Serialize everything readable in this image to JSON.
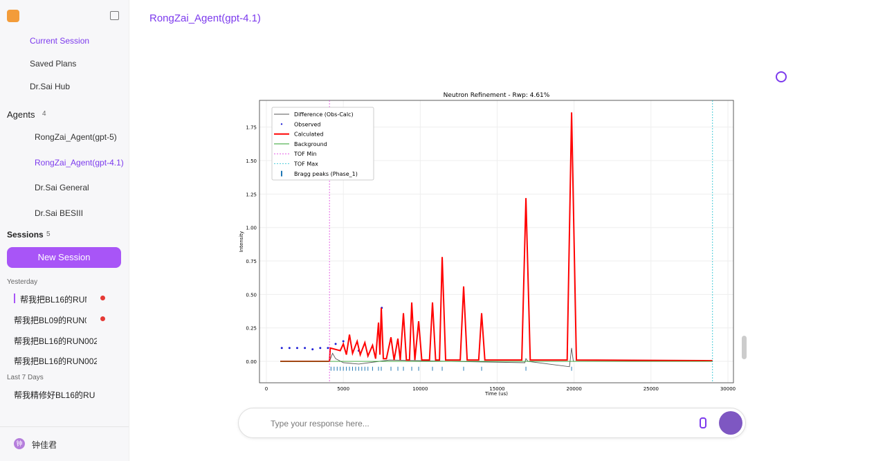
{
  "sidebar": {
    "nav": [
      "Current Session",
      "Saved Plans",
      "Dr.Sai Hub"
    ],
    "agents_title": "Agents",
    "agents_count": 4,
    "agents": [
      "RongZai_Agent(gpt-5)",
      "RongZai_Agent(gpt-4.1)",
      "Dr.Sai General",
      "Dr.Sai BESIII"
    ],
    "sessions_title": "Sessions",
    "sessions_count": 5,
    "new_session": "New Session",
    "groups": [
      {
        "label": "Yesterday",
        "items": [
          "帮我把BL16的RUN(",
          "帮我把BL09的RUN0(",
          "帮我把BL16的RUN002",
          "帮我把BL16的RUN002"
        ]
      },
      {
        "label": "Last 7 Days",
        "items": [
          "帮我精修好BL16的RUN"
        ]
      }
    ],
    "user_initial": "钟",
    "user": "钟佳君"
  },
  "header": {
    "title": "RongZai_Agent(gpt-4.1)"
  },
  "input": {
    "placeholder": "Type your response here..."
  },
  "chart_data": {
    "type": "line",
    "title": "Neutron Refinement - Rwp: 4.61%",
    "xlabel": "Time (us)",
    "ylabel": "Intensity",
    "xlim": [
      -450,
      30360
    ],
    "ylim": [
      -0.16,
      1.95
    ],
    "xticks": [
      0,
      5000,
      10000,
      15000,
      20000,
      25000,
      30000
    ],
    "yticks": [
      {
        "value": 0,
        "label": "0.00"
      },
      {
        "value": 0.25,
        "label": "0.25"
      },
      {
        "value": 0.5,
        "label": "0.50"
      },
      {
        "value": 0.75,
        "label": "0.75"
      },
      {
        "value": 1,
        "label": "1.00"
      },
      {
        "value": 1.25,
        "label": "1.25"
      },
      {
        "value": 1.5,
        "label": "1.50"
      },
      {
        "value": 1.75,
        "label": "1.75"
      }
    ],
    "grid": true,
    "series": [
      {
        "name": "Difference (Obs-Calc)",
        "color": "#555555",
        "x": [
          4100,
          4300,
          4500,
          5000,
          6000,
          8000,
          12000,
          16800,
          16870,
          17000,
          19700,
          19838,
          19950,
          29000
        ],
        "values": [
          0,
          0.06,
          0.02,
          -0.01,
          -0.02,
          0.01,
          0,
          -0.01,
          0.02,
          0,
          -0.04,
          0.1,
          0,
          0
        ]
      },
      {
        "name": "Observed",
        "color": "#1f1fd6",
        "x": [
          1000,
          1500,
          2000,
          2500,
          3000,
          3500,
          4000,
          4500,
          5000,
          6000,
          7500
        ],
        "values": [
          0.1,
          0.1,
          0.1,
          0.1,
          0.09,
          0.1,
          0.1,
          0.13,
          0.15,
          0.08,
          0.4
        ]
      },
      {
        "name": "Calculated",
        "color": "#ff0000",
        "x": [
          900,
          4100,
          4150,
          4800,
          5000,
          5200,
          5400,
          5600,
          5900,
          6100,
          6400,
          6600,
          6900,
          7100,
          7287,
          7380,
          7467,
          7600,
          7800,
          8097,
          8300,
          8547,
          8700,
          8907,
          9100,
          9300,
          9447,
          9650,
          9896,
          10100,
          10600,
          10796,
          11000,
          11250,
          11426,
          11650,
          12600,
          12820,
          13050,
          13800,
          13990,
          14200,
          16600,
          16870,
          17150,
          19550,
          19838,
          20150,
          29000
        ],
        "values": [
          0,
          0,
          0.1,
          0.08,
          0.13,
          0.05,
          0.2,
          0.06,
          0.15,
          0.05,
          0.14,
          0.04,
          0.12,
          0.02,
          0.29,
          0.05,
          0.4,
          0.02,
          0.02,
          0.18,
          0.01,
          0.17,
          0.01,
          0.36,
          0.01,
          0.01,
          0.44,
          0.01,
          0.3,
          0.01,
          0.01,
          0.44,
          0.01,
          0.01,
          0.78,
          0.01,
          0.01,
          0.56,
          0.01,
          0.01,
          0.36,
          0.01,
          0.01,
          1.22,
          0.01,
          0.01,
          1.86,
          0.01,
          0.005
        ]
      },
      {
        "name": "Background",
        "color": "#2ca02c",
        "x": [
          900,
          29000
        ],
        "values": [
          0,
          0
        ]
      },
      {
        "name": "TOF Min",
        "color": "#e040e0",
        "x": [
          4100
        ]
      },
      {
        "name": "TOF Max",
        "color": "#17becf",
        "x": [
          29000
        ]
      },
      {
        "name": "Bragg peaks (Phase_1)",
        "color": "#1f77b4",
        "x": [
          4200,
          4400,
          4600,
          4800,
          5000,
          5200,
          5400,
          5600,
          5800,
          6000,
          6200,
          6400,
          6600,
          6900,
          7287,
          7467,
          8097,
          8547,
          8907,
          9447,
          9896,
          10796,
          11426,
          12820,
          13990,
          16870,
          19838
        ]
      }
    ]
  }
}
